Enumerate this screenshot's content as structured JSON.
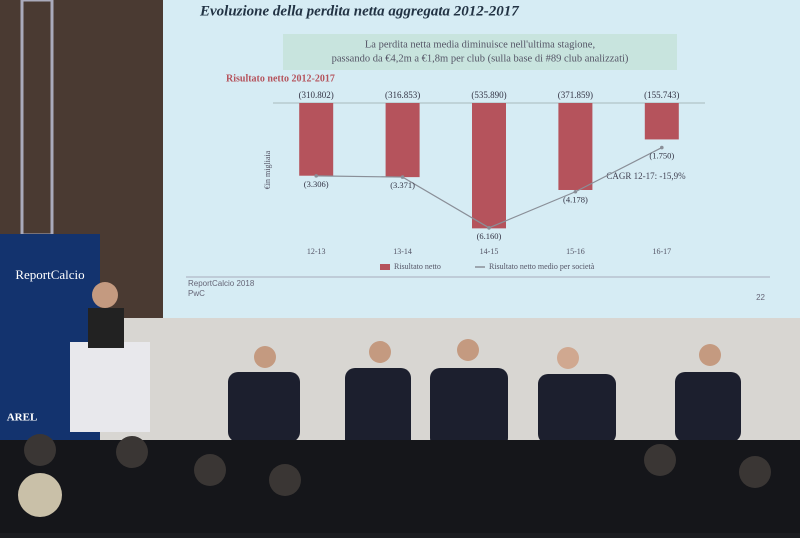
{
  "chart_data": {
    "type": "bar-line",
    "title": "Evoluzione della perdita netta aggregata 2012-2017",
    "subtitle": [
      "La perdita netta media diminuisce nell'ultima stagione,",
      "passando da €4,2m a €1,8m per club (sulla base di #89 club analizzati)"
    ],
    "chart_title": "Risultato netto 2012-2017",
    "y_label": "€in migliaia",
    "annotation": "CAGR 12-17: -15,9%",
    "categories": [
      "12-13",
      "13-14",
      "14-15",
      "15-16",
      "16-17"
    ],
    "series": [
      {
        "name": "Risultato netto",
        "color": "#b5535c",
        "values": [
          -310802,
          -316853,
          -535890,
          -371859,
          -155743
        ],
        "value_labels": [
          "(310.802)",
          "(316.853)",
          "(535.890)",
          "(371.859)",
          "(155.743)"
        ]
      },
      {
        "name": "Risultato netto medio per società",
        "color": "#8a8f98",
        "axis": "y2",
        "values": [
          -3306,
          -3371,
          -6160,
          -4178,
          -1750
        ],
        "value_labels": [
          "(3.306)",
          "(3.371)",
          "(6.160)",
          "(4.178)",
          "(1.750)"
        ]
      }
    ],
    "ylim": [
      -560000,
      0
    ],
    "y2lim": [
      -6500,
      700
    ]
  },
  "slide": {
    "source": "ReportCalcio 2018",
    "author": "PwC",
    "page": "22"
  },
  "banner": {
    "title": "ReportCalcio",
    "logo": "AREL"
  }
}
